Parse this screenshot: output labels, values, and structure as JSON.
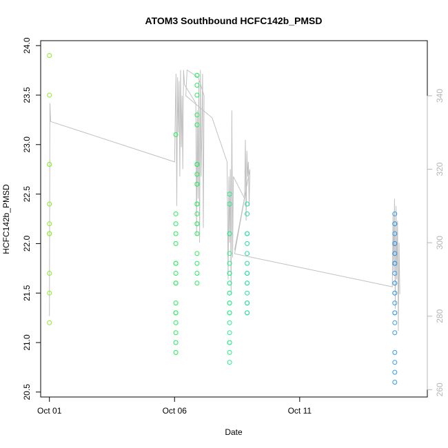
{
  "chart_data": {
    "type": "scatter",
    "title": "ATOM3 Southbound HCFC142b_PMSD",
    "xlabel": "Date",
    "ylabel": "HCFC142b_PMSD",
    "xlim": [
      -0.35,
      15.1
    ],
    "ylim": [
      20.45,
      24.05
    ],
    "right_ylim": [
      258,
      355
    ],
    "x_ticks": [
      {
        "value": 0,
        "label": "Oct 01"
      },
      {
        "value": 5,
        "label": "Oct 06"
      },
      {
        "value": 10,
        "label": "Oct 11"
      }
    ],
    "y_ticks": [
      {
        "value": 20.5,
        "label": "20.5"
      },
      {
        "value": 21.0,
        "label": "21.0"
      },
      {
        "value": 21.5,
        "label": "21.5"
      },
      {
        "value": 22.0,
        "label": "22.0"
      },
      {
        "value": 22.5,
        "label": "22.5"
      },
      {
        "value": 23.0,
        "label": "23.0"
      },
      {
        "value": 23.5,
        "label": "23.5"
      },
      {
        "value": 24.0,
        "label": "24.0"
      }
    ],
    "right_y_ticks": [
      {
        "value": 260,
        "label": "260"
      },
      {
        "value": 280,
        "label": "280"
      },
      {
        "value": 300,
        "label": "300"
      },
      {
        "value": 320,
        "label": "320"
      },
      {
        "value": 340,
        "label": "340"
      }
    ],
    "grid": false,
    "colors": {
      "line": "#c0c0c0",
      "right_axis": "#b4b4b4",
      "points_lime": "#88ee22",
      "points_green": "#22ee55",
      "points_teal": "#22dd88",
      "points_blue": "#3399ee"
    },
    "point_groups": [
      {
        "color": "#88ee22",
        "x": 0.0,
        "y": [
          23.9,
          23.5,
          22.8,
          22.8,
          22.4,
          22.2,
          22.1,
          22.1,
          21.7,
          21.5,
          21.2
        ]
      },
      {
        "color": "#22ee55",
        "x": 5.05,
        "y": [
          23.1,
          22.3,
          22.2,
          22.1,
          22.0,
          21.8,
          21.8,
          21.7,
          21.6,
          21.6,
          21.4,
          21.3,
          21.3,
          21.2,
          21.1,
          21.0,
          20.9
        ]
      },
      {
        "color": "#22ee55",
        "x": 5.9,
        "y": [
          23.7,
          23.7,
          23.6,
          23.5,
          23.3,
          23.2,
          22.8,
          22.8,
          22.8,
          22.7,
          22.6,
          22.6,
          22.4,
          22.4,
          22.3,
          22.2,
          22.2,
          22.1,
          21.9,
          21.8,
          21.7,
          21.6
        ]
      },
      {
        "color": "#22ee88",
        "x": 7.2,
        "y": [
          22.5,
          22.4,
          22.1,
          22.1,
          21.9,
          21.8,
          21.7,
          21.7,
          21.6,
          21.6,
          21.5,
          21.5,
          21.4,
          21.4,
          21.3,
          21.3,
          21.2,
          21.1,
          21.0,
          21.0,
          20.9,
          20.8
        ]
      },
      {
        "color": "#22dd99",
        "x": 7.9,
        "y": [
          22.4,
          22.3,
          22.1,
          22.1,
          22.0,
          21.9,
          21.8,
          21.7,
          21.7,
          21.6,
          21.6,
          21.5,
          21.4,
          21.4,
          21.3,
          21.3
        ]
      },
      {
        "color": "#3399ee",
        "x": 13.8,
        "y": [
          22.3,
          22.2,
          22.2,
          22.1,
          22.0,
          22.0,
          21.9,
          21.9,
          21.8,
          21.8,
          21.8,
          21.7,
          21.6,
          21.6,
          21.5,
          21.5,
          21.4,
          21.3,
          21.3,
          21.2,
          21.1,
          20.9,
          20.8,
          20.7,
          20.6
        ]
      }
    ],
    "line_right_axis": [
      {
        "x": 0.0,
        "y": 280
      },
      {
        "x": 0.02,
        "y": 338
      },
      {
        "x": 0.05,
        "y": 333
      },
      {
        "x": 5.0,
        "y": 322
      },
      {
        "x": 5.03,
        "y": 336
      },
      {
        "x": 5.06,
        "y": 346
      },
      {
        "x": 5.09,
        "y": 310
      },
      {
        "x": 5.12,
        "y": 345
      },
      {
        "x": 5.15,
        "y": 330
      },
      {
        "x": 5.18,
        "y": 344
      },
      {
        "x": 5.21,
        "y": 318
      },
      {
        "x": 5.24,
        "y": 347
      },
      {
        "x": 5.27,
        "y": 326
      },
      {
        "x": 5.3,
        "y": 340
      },
      {
        "x": 5.33,
        "y": 320
      },
      {
        "x": 5.36,
        "y": 347
      },
      {
        "x": 5.4,
        "y": 343
      },
      {
        "x": 5.85,
        "y": 338
      },
      {
        "x": 5.88,
        "y": 302
      },
      {
        "x": 5.91,
        "y": 336
      },
      {
        "x": 5.94,
        "y": 312
      },
      {
        "x": 5.97,
        "y": 344
      },
      {
        "x": 6.0,
        "y": 300
      },
      {
        "x": 6.03,
        "y": 347
      },
      {
        "x": 6.06,
        "y": 318
      },
      {
        "x": 6.09,
        "y": 330
      },
      {
        "x": 6.12,
        "y": 346
      },
      {
        "x": 6.15,
        "y": 304
      },
      {
        "x": 6.18,
        "y": 340
      },
      {
        "x": 5.95,
        "y": 345
      },
      {
        "x": 5.5,
        "y": 347
      },
      {
        "x": 5.45,
        "y": 340
      },
      {
        "x": 6.5,
        "y": 334
      },
      {
        "x": 7.1,
        "y": 322
      },
      {
        "x": 7.14,
        "y": 290
      },
      {
        "x": 7.17,
        "y": 318
      },
      {
        "x": 7.2,
        "y": 300
      },
      {
        "x": 7.23,
        "y": 320
      },
      {
        "x": 7.26,
        "y": 286
      },
      {
        "x": 7.29,
        "y": 336
      },
      {
        "x": 7.32,
        "y": 296
      },
      {
        "x": 7.35,
        "y": 318
      },
      {
        "x": 7.8,
        "y": 312
      },
      {
        "x": 7.83,
        "y": 328
      },
      {
        "x": 7.86,
        "y": 306
      },
      {
        "x": 7.89,
        "y": 325
      },
      {
        "x": 7.92,
        "y": 318
      },
      {
        "x": 7.95,
        "y": 322
      },
      {
        "x": 7.98,
        "y": 310
      },
      {
        "x": 8.01,
        "y": 320
      },
      {
        "x": 7.4,
        "y": 298
      },
      {
        "x": 7.85,
        "y": 314
      },
      {
        "x": 7.4,
        "y": 297
      },
      {
        "x": 13.7,
        "y": 288
      },
      {
        "x": 13.73,
        "y": 308
      },
      {
        "x": 13.76,
        "y": 292
      },
      {
        "x": 13.79,
        "y": 312
      },
      {
        "x": 13.82,
        "y": 282
      },
      {
        "x": 13.85,
        "y": 310
      },
      {
        "x": 13.88,
        "y": 290
      },
      {
        "x": 13.91,
        "y": 306
      },
      {
        "x": 13.94,
        "y": 276
      },
      {
        "x": 13.97,
        "y": 300
      },
      {
        "x": 14.0,
        "y": 286
      }
    ]
  }
}
